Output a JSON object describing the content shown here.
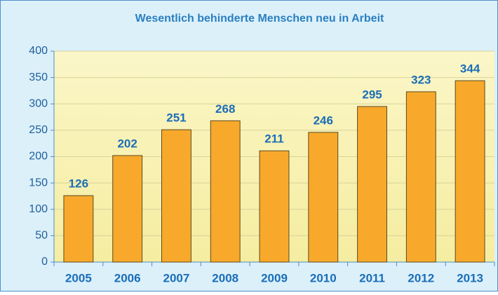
{
  "chart_data": {
    "type": "bar",
    "title": "Wesentlich behinderte Menschen neu in Arbeit",
    "categories": [
      "2005",
      "2006",
      "2007",
      "2008",
      "2009",
      "2010",
      "2011",
      "2012",
      "2013"
    ],
    "values": [
      126,
      202,
      251,
      268,
      211,
      246,
      295,
      323,
      344
    ],
    "color": "#f8a92b",
    "ylim": [
      0,
      400
    ],
    "yticks": [
      0,
      50,
      100,
      150,
      200,
      250,
      300,
      350,
      400
    ],
    "grid": true
  }
}
